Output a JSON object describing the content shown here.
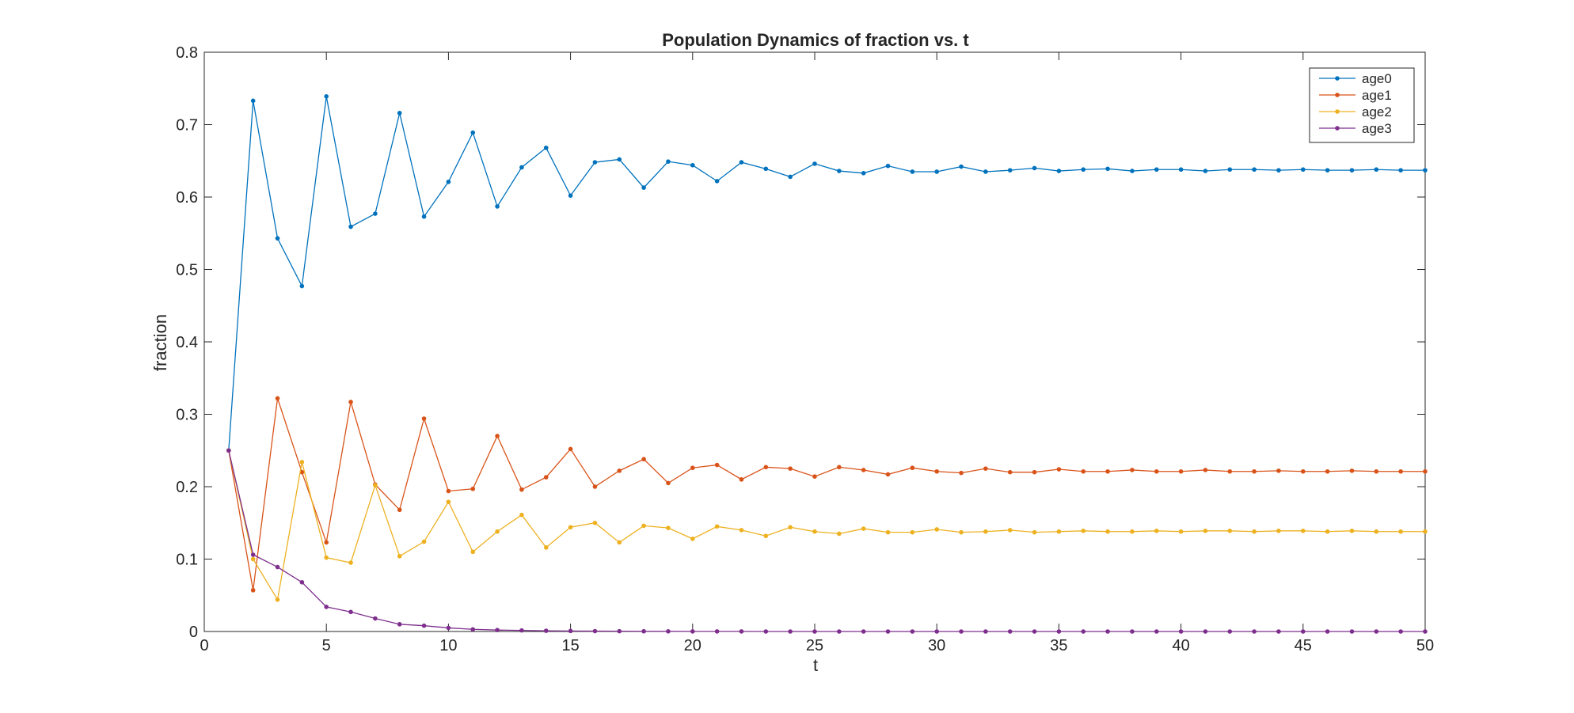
{
  "chart_data": {
    "type": "line",
    "title": "Population Dynamics of fraction vs. t",
    "xlabel": "t",
    "ylabel": "fraction",
    "xlim": [
      0,
      50
    ],
    "ylim": [
      0,
      0.8
    ],
    "xticks": [
      0,
      5,
      10,
      15,
      20,
      25,
      30,
      35,
      40,
      45,
      50
    ],
    "yticks": [
      0,
      0.1,
      0.2,
      0.3,
      0.4,
      0.5,
      0.6,
      0.7,
      0.8
    ],
    "grid": false,
    "legend_position": "top-right",
    "x": [
      1,
      2,
      3,
      4,
      5,
      6,
      7,
      8,
      9,
      10,
      11,
      12,
      13,
      14,
      15,
      16,
      17,
      18,
      19,
      20,
      21,
      22,
      23,
      24,
      25,
      26,
      27,
      28,
      29,
      30,
      31,
      32,
      33,
      34,
      35,
      36,
      37,
      38,
      39,
      40,
      41,
      42,
      43,
      44,
      45,
      46,
      47,
      48,
      49,
      50
    ],
    "series": [
      {
        "name": "age0",
        "color": "#0072BD",
        "values": [
          0.25,
          0.733,
          0.543,
          0.477,
          0.739,
          0.559,
          0.577,
          0.716,
          0.573,
          0.621,
          0.689,
          0.587,
          0.641,
          0.668,
          0.602,
          0.648,
          0.652,
          0.613,
          0.649,
          0.644,
          0.622,
          0.648,
          0.639,
          0.628,
          0.646,
          0.636,
          0.633,
          0.643,
          0.635,
          0.635,
          0.642,
          0.635,
          0.637,
          0.64,
          0.636,
          0.638,
          0.639,
          0.636,
          0.638,
          0.638,
          0.636,
          0.638,
          0.638,
          0.637,
          0.638,
          0.637,
          0.637,
          0.638,
          0.637,
          0.637
        ]
      },
      {
        "name": "age1",
        "color": "#D95319",
        "values": [
          0.25,
          0.057,
          0.322,
          0.22,
          0.123,
          0.317,
          0.203,
          0.168,
          0.294,
          0.194,
          0.197,
          0.27,
          0.196,
          0.213,
          0.252,
          0.2,
          0.222,
          0.238,
          0.205,
          0.226,
          0.23,
          0.21,
          0.227,
          0.225,
          0.214,
          0.227,
          0.223,
          0.217,
          0.226,
          0.221,
          0.219,
          0.225,
          0.22,
          0.22,
          0.224,
          0.221,
          0.221,
          0.223,
          0.221,
          0.221,
          0.223,
          0.221,
          0.221,
          0.222,
          0.221,
          0.221,
          0.222,
          0.221,
          0.221,
          0.221
        ]
      },
      {
        "name": "age2",
        "color": "#EDB120",
        "values": [
          0.25,
          0.1,
          0.044,
          0.234,
          0.102,
          0.095,
          0.202,
          0.104,
          0.124,
          0.179,
          0.11,
          0.138,
          0.161,
          0.116,
          0.144,
          0.15,
          0.123,
          0.146,
          0.143,
          0.128,
          0.145,
          0.14,
          0.132,
          0.144,
          0.138,
          0.135,
          0.142,
          0.137,
          0.137,
          0.141,
          0.137,
          0.138,
          0.14,
          0.137,
          0.138,
          0.139,
          0.138,
          0.138,
          0.139,
          0.138,
          0.139,
          0.139,
          0.138,
          0.139,
          0.139,
          0.138,
          0.139,
          0.138,
          0.138,
          0.138
        ]
      },
      {
        "name": "age3",
        "color": "#7E2F8E",
        "values": [
          0.25,
          0.106,
          0.089,
          0.068,
          0.034,
          0.027,
          0.018,
          0.01,
          0.008,
          0.005,
          0.003,
          0.002,
          0.0015,
          0.001,
          0.0007,
          0.0005,
          0.0004,
          0.0003,
          0.0002,
          0.0001,
          0.0001,
          0.0001,
          0,
          0,
          0,
          0,
          0,
          0,
          0,
          0,
          0,
          0,
          0,
          0,
          0,
          0,
          0,
          0,
          0,
          0,
          0,
          0,
          0,
          0,
          0,
          0,
          0,
          0,
          0,
          0
        ]
      }
    ]
  }
}
